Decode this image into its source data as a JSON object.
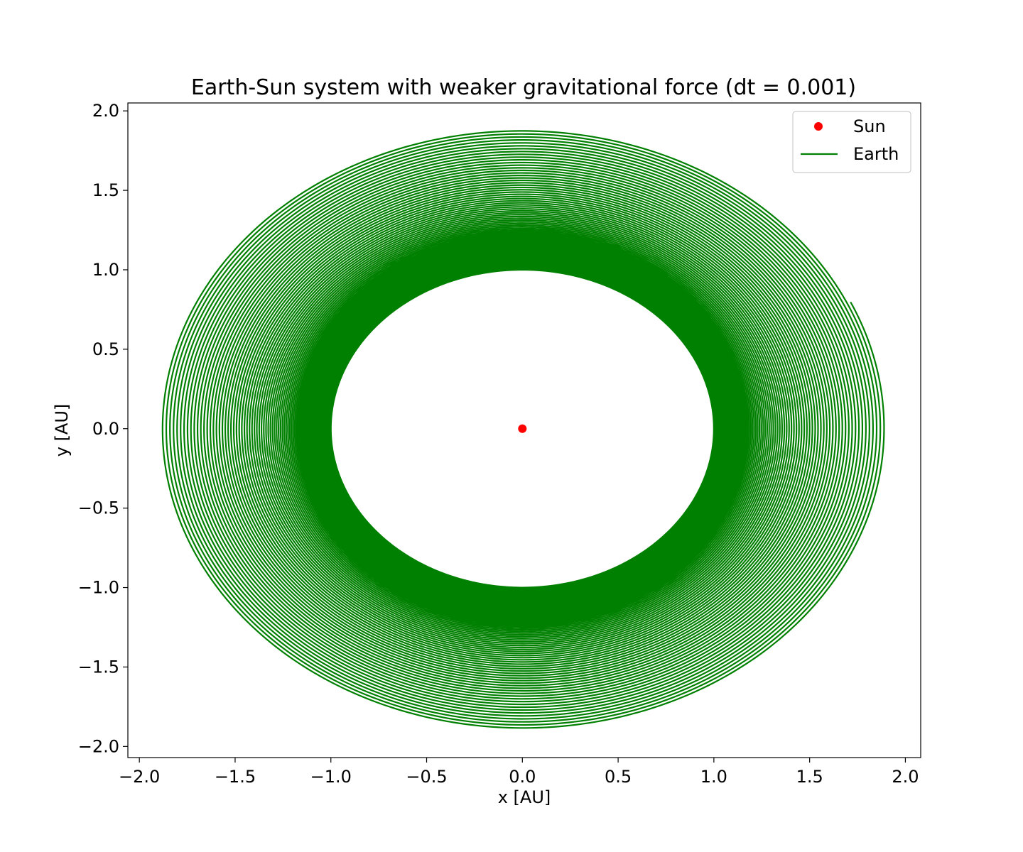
{
  "chart_data": {
    "type": "line",
    "title": "Earth-Sun system with weaker gravitational force (dt = 0.001)",
    "xlabel": "x [AU]",
    "ylabel": "y [AU]",
    "xlim": [
      -2.06,
      2.08
    ],
    "ylim": [
      -2.07,
      2.05
    ],
    "xticks": [
      {
        "value": -2.0,
        "label": "−2.0"
      },
      {
        "value": -1.5,
        "label": "−1.5"
      },
      {
        "value": -1.0,
        "label": "−1.0"
      },
      {
        "value": -0.5,
        "label": "−0.5"
      },
      {
        "value": 0.0,
        "label": "0.0"
      },
      {
        "value": 0.5,
        "label": "0.5"
      },
      {
        "value": 1.0,
        "label": "1.0"
      },
      {
        "value": 1.5,
        "label": "1.5"
      },
      {
        "value": 2.0,
        "label": "2.0"
      }
    ],
    "yticks": [
      {
        "value": 2.0,
        "label": "2.0"
      },
      {
        "value": 1.5,
        "label": "1.5"
      },
      {
        "value": 1.0,
        "label": "1.0"
      },
      {
        "value": 0.5,
        "label": "0.5"
      },
      {
        "value": 0.0,
        "label": "0.0"
      },
      {
        "value": -0.5,
        "label": "−0.5"
      },
      {
        "value": -1.0,
        "label": "−1.0"
      },
      {
        "value": -1.5,
        "label": "−1.5"
      },
      {
        "value": -2.0,
        "label": "−2.0"
      }
    ],
    "grid": false,
    "legend_position": "top-right",
    "series": [
      {
        "name": "Sun",
        "type": "scatter",
        "color": "#ff0000",
        "points": [
          {
            "x": 0.0,
            "y": 0.0
          }
        ]
      },
      {
        "name": "Earth",
        "type": "spiral",
        "color": "#008000",
        "center": {
          "x": 0.0,
          "y": 0.0
        },
        "start": {
          "x": 1.0,
          "y": 0.0
        },
        "end": {
          "x": 1.72,
          "y": 0.8
        },
        "inner_radius": 1.0,
        "outer_radius": 1.89,
        "description": "outward spiral orbit from radius 1.0 AU to about 1.89 AU"
      }
    ]
  }
}
